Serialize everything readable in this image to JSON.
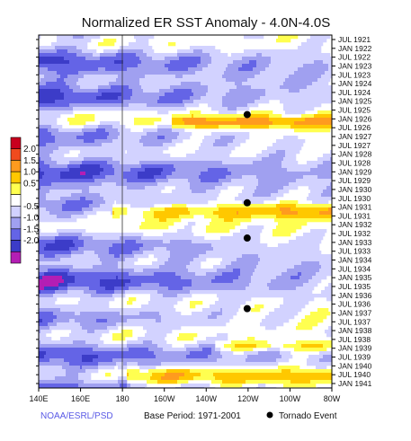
{
  "chart_data": {
    "type": "heatmap",
    "title": "Normalized ER SST Anomaly - 4.0N-4.0S",
    "x_tick_labels": [
      "140E",
      "160E",
      "180",
      "160W",
      "140W",
      "120W",
      "100W",
      "80W"
    ],
    "y_tick_labels": [
      "JUL 1921",
      "JAN 1922",
      "JUL 1922",
      "JAN 1923",
      "JUL 1923",
      "JAN 1924",
      "JUL 1924",
      "JAN 1925",
      "JUL 1925",
      "JAN 1926",
      "JUL 1926",
      "JAN 1927",
      "JUL 1927",
      "JAN 1928",
      "JUL 1928",
      "JAN 1929",
      "JUL 1929",
      "JAN 1930",
      "JUL 1930",
      "JAN 1931",
      "JUL 1931",
      "JAN 1932",
      "JUL 1932",
      "JAN 1933",
      "JUL 1933",
      "JAN 1934",
      "JUL 1934",
      "JAN 1935",
      "JUL 1935",
      "JAN 1936",
      "JUL 1936",
      "JAN 1937",
      "JUL 1937",
      "JAN 1938",
      "JUL 1938",
      "JAN 1939",
      "JUL 1939",
      "JAN 1940",
      "JUL 1940",
      "JAN 1941"
    ],
    "colorbar": {
      "labels": [
        "2.0",
        "1.5",
        "1.0",
        "0.5",
        "-0.5",
        "-1.0",
        "-1.5",
        "-2.0"
      ],
      "colors": [
        "#c8001e",
        "#f04b1e",
        "#ff9b1e",
        "#ffc800",
        "#ffff50",
        "#ffffff",
        "#d2d2ff",
        "#a0a0f0",
        "#6464e6",
        "#3c3cc8",
        "#b41eb4"
      ]
    },
    "tornado_events": [
      {
        "lon": "120W",
        "date": "JUL 1925"
      },
      {
        "lon": "120W",
        "date": "JUL 1930"
      },
      {
        "lon": "120W",
        "date": "JUL 1932"
      },
      {
        "lon": "120W",
        "date": "JUL 1936"
      }
    ],
    "reference_line_lon": "180",
    "legend_label": "Tornado Event"
  },
  "footer": {
    "source": "NOAA/ESRL/PSD",
    "base_period": "Base Period: 1971-2001",
    "legend": "Tornado Event"
  }
}
